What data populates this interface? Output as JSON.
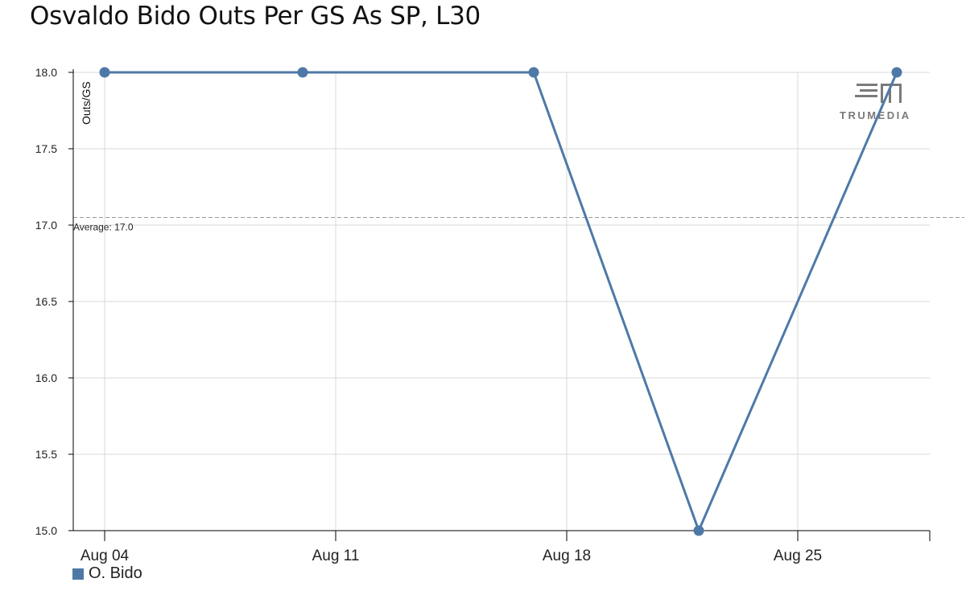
{
  "chart_data": {
    "type": "line",
    "title": "Osvaldo Bido Outs Per GS As SP, L30",
    "ylabel": "Outs/GS",
    "xlabel": "",
    "x_ticks": [
      "Aug 04",
      "Aug 11",
      "Aug 18",
      "Aug 25"
    ],
    "y_ticks": [
      "15.0",
      "15.5",
      "16.0",
      "16.5",
      "17.0",
      "17.5",
      "18.0"
    ],
    "ylim": [
      15.0,
      18.0
    ],
    "grid": true,
    "legend_position": "bottom-left",
    "series": [
      {
        "name": "O. Bido",
        "color": "#4e79a7",
        "points": [
          {
            "date": "Aug 04",
            "value": 18.0
          },
          {
            "date": "Aug 10",
            "value": 18.0
          },
          {
            "date": "Aug 17",
            "value": 18.0
          },
          {
            "date": "Aug 22",
            "value": 15.0
          },
          {
            "date": "Aug 28",
            "value": 18.0
          }
        ]
      }
    ],
    "average": {
      "value": 17.05,
      "label": "Average: 17.0"
    },
    "watermark": {
      "text": "TRUMEDIA",
      "icon": "trumedia-logo-icon"
    }
  }
}
